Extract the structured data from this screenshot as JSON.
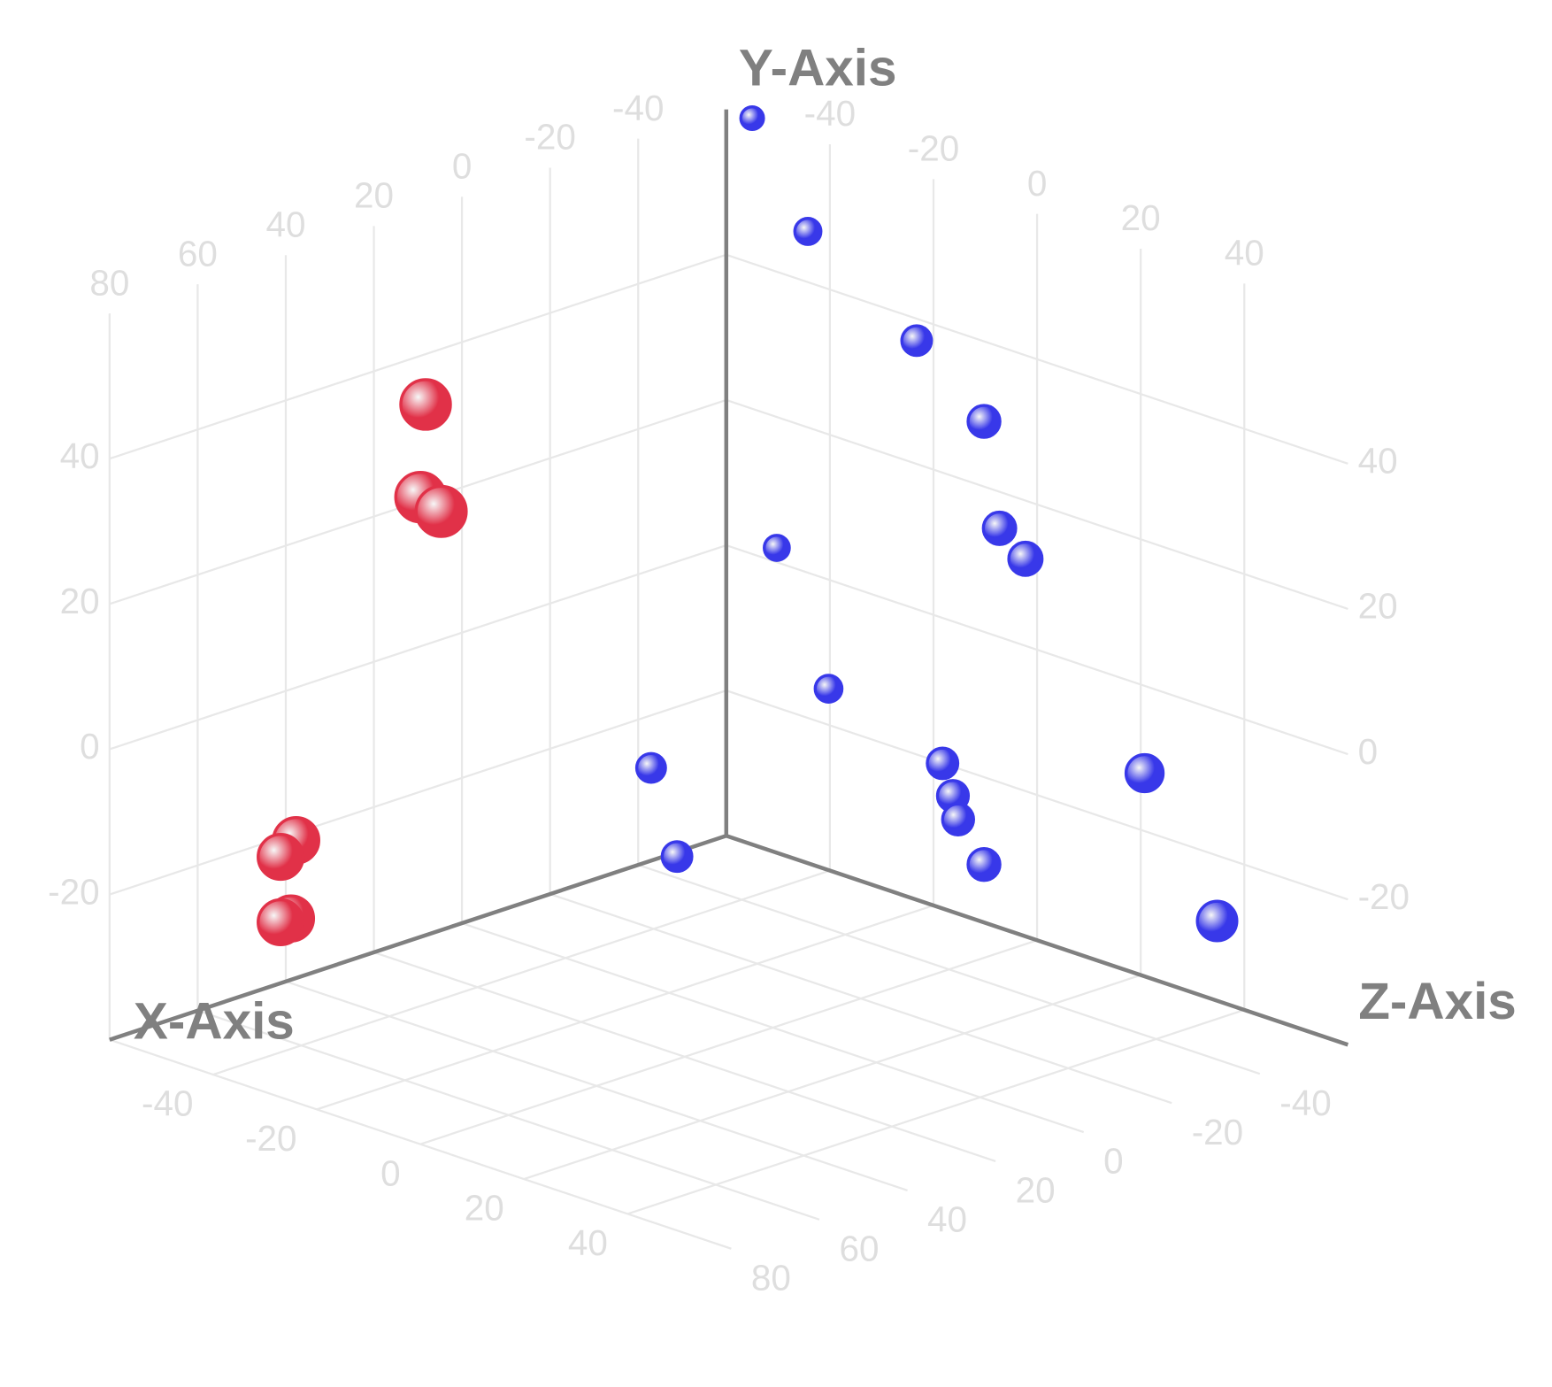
{
  "chart_data": {
    "type": "scatter3d",
    "axis_labels": {
      "x": "X-Axis",
      "y": "Y-Axis",
      "z": "Z-Axis"
    },
    "xlim": [
      -60,
      80
    ],
    "ylim": [
      -40,
      60
    ],
    "zlim": [
      -60,
      60
    ],
    "xticks": [
      -40,
      -20,
      0,
      20,
      40,
      60,
      80
    ],
    "yticks": [
      -20,
      0,
      20,
      40
    ],
    "zticks": [
      -40,
      -20,
      0,
      20,
      40
    ],
    "grid": true,
    "series": [
      {
        "color": "#3a3af0",
        "x": [
          -60,
          -55,
          -55,
          -55,
          -55,
          -55,
          -55,
          -55,
          -55,
          -55,
          -55,
          -55,
          -55,
          -55,
          -30,
          -30
        ],
        "y": [
          60,
          49,
          39,
          31,
          17,
          14,
          4,
          -13,
          -18,
          -22,
          -25,
          -30,
          -10,
          -27,
          -22,
          -33
        ],
        "z": [
          -55,
          -40,
          -19,
          -6,
          -3,
          2,
          -46,
          -36,
          -14,
          -12,
          -11,
          -6,
          25,
          39,
          -49,
          -44
        ]
      },
      {
        "color": "#e8324a",
        "x": [
          60,
          60,
          60,
          60,
          60,
          60,
          60
        ],
        "y": [
          54,
          41,
          40,
          -12,
          -15,
          -23,
          -24
        ],
        "z": [
          -16,
          -17,
          -13,
          -41,
          -44,
          -42,
          -44
        ]
      }
    ]
  }
}
